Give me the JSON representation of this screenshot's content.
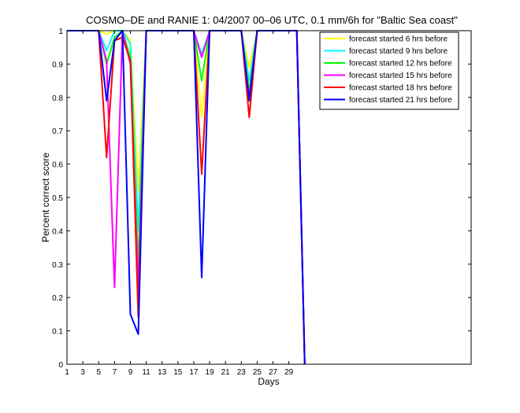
{
  "chart_data": {
    "type": "line",
    "title": "COSMO–DE and RANIE 1: 04/2007 00–06 UTC, 0.1 mm/6h for \"Baltic Sea coast\"",
    "xlabel": "Days",
    "ylabel": "Percent correct score",
    "xlim": [
      1,
      52
    ],
    "ylim": [
      0,
      1
    ],
    "xticks": [
      1,
      3,
      5,
      7,
      9,
      11,
      13,
      15,
      17,
      19,
      21,
      23,
      25,
      27,
      29
    ],
    "yticks": [
      0,
      0.1,
      0.2,
      0.3,
      0.4,
      0.5,
      0.6,
      0.7,
      0.8,
      0.9,
      1
    ],
    "legend_position": "top-right",
    "x": [
      1,
      2,
      3,
      4,
      5,
      6,
      7,
      8,
      9,
      10,
      11,
      12,
      13,
      14,
      15,
      16,
      17,
      18,
      19,
      20,
      21,
      22,
      23,
      24,
      25,
      26,
      27,
      28,
      29,
      30,
      31
    ],
    "series": [
      {
        "name": "forecast started 6 hrs before",
        "color": "#ffff00",
        "values": [
          1,
          1,
          1,
          1,
          1,
          0.99,
          1,
          1,
          0.97,
          0.52,
          1,
          1,
          1,
          1,
          1,
          1,
          1,
          0.74,
          1,
          1,
          1,
          1,
          1,
          0.89,
          1,
          1,
          1,
          1,
          1,
          1,
          0
        ]
      },
      {
        "name": "forecast started 9 hrs before",
        "color": "#00ffff",
        "values": [
          1,
          1,
          1,
          1,
          1,
          0.94,
          1,
          1,
          0.96,
          0.4,
          1,
          1,
          1,
          1,
          1,
          1,
          1,
          0.93,
          1,
          1,
          1,
          1,
          1,
          0.85,
          1,
          1,
          1,
          1,
          1,
          1,
          0
        ]
      },
      {
        "name": "forecast started 12 hrs before",
        "color": "#00ff00",
        "values": [
          1,
          1,
          1,
          1,
          1,
          0.9,
          0.98,
          1,
          0.92,
          0.3,
          1,
          1,
          1,
          1,
          1,
          1,
          1,
          0.85,
          1,
          1,
          1,
          1,
          1,
          0.82,
          1,
          1,
          1,
          1,
          1,
          1,
          0
        ]
      },
      {
        "name": "forecast started 15 hrs before",
        "color": "#ff00ff",
        "values": [
          1,
          1,
          1,
          1,
          1,
          0.91,
          0.23,
          1,
          0.9,
          0.22,
          1,
          1,
          1,
          1,
          1,
          1,
          1,
          0.92,
          1,
          1,
          1,
          1,
          1,
          0.8,
          1,
          1,
          1,
          1,
          1,
          1,
          0
        ]
      },
      {
        "name": "forecast started 18 hrs before",
        "color": "#ff0000",
        "values": [
          1,
          1,
          1,
          1,
          1,
          0.62,
          0.97,
          0.98,
          0.91,
          0.14,
          1,
          1,
          1,
          1,
          1,
          1,
          1,
          0.57,
          1,
          1,
          1,
          1,
          1,
          0.74,
          1,
          1,
          1,
          1,
          1,
          1,
          0
        ]
      },
      {
        "name": "forecast started 21 hrs before",
        "color": "#0000ff",
        "values": [
          1,
          1,
          1,
          1,
          1,
          0.79,
          0.97,
          1,
          0.15,
          0.09,
          1,
          1,
          1,
          1,
          1,
          1,
          1,
          0.26,
          1,
          1,
          1,
          1,
          1,
          0.79,
          1,
          1,
          1,
          1,
          1,
          1,
          0
        ]
      }
    ]
  }
}
